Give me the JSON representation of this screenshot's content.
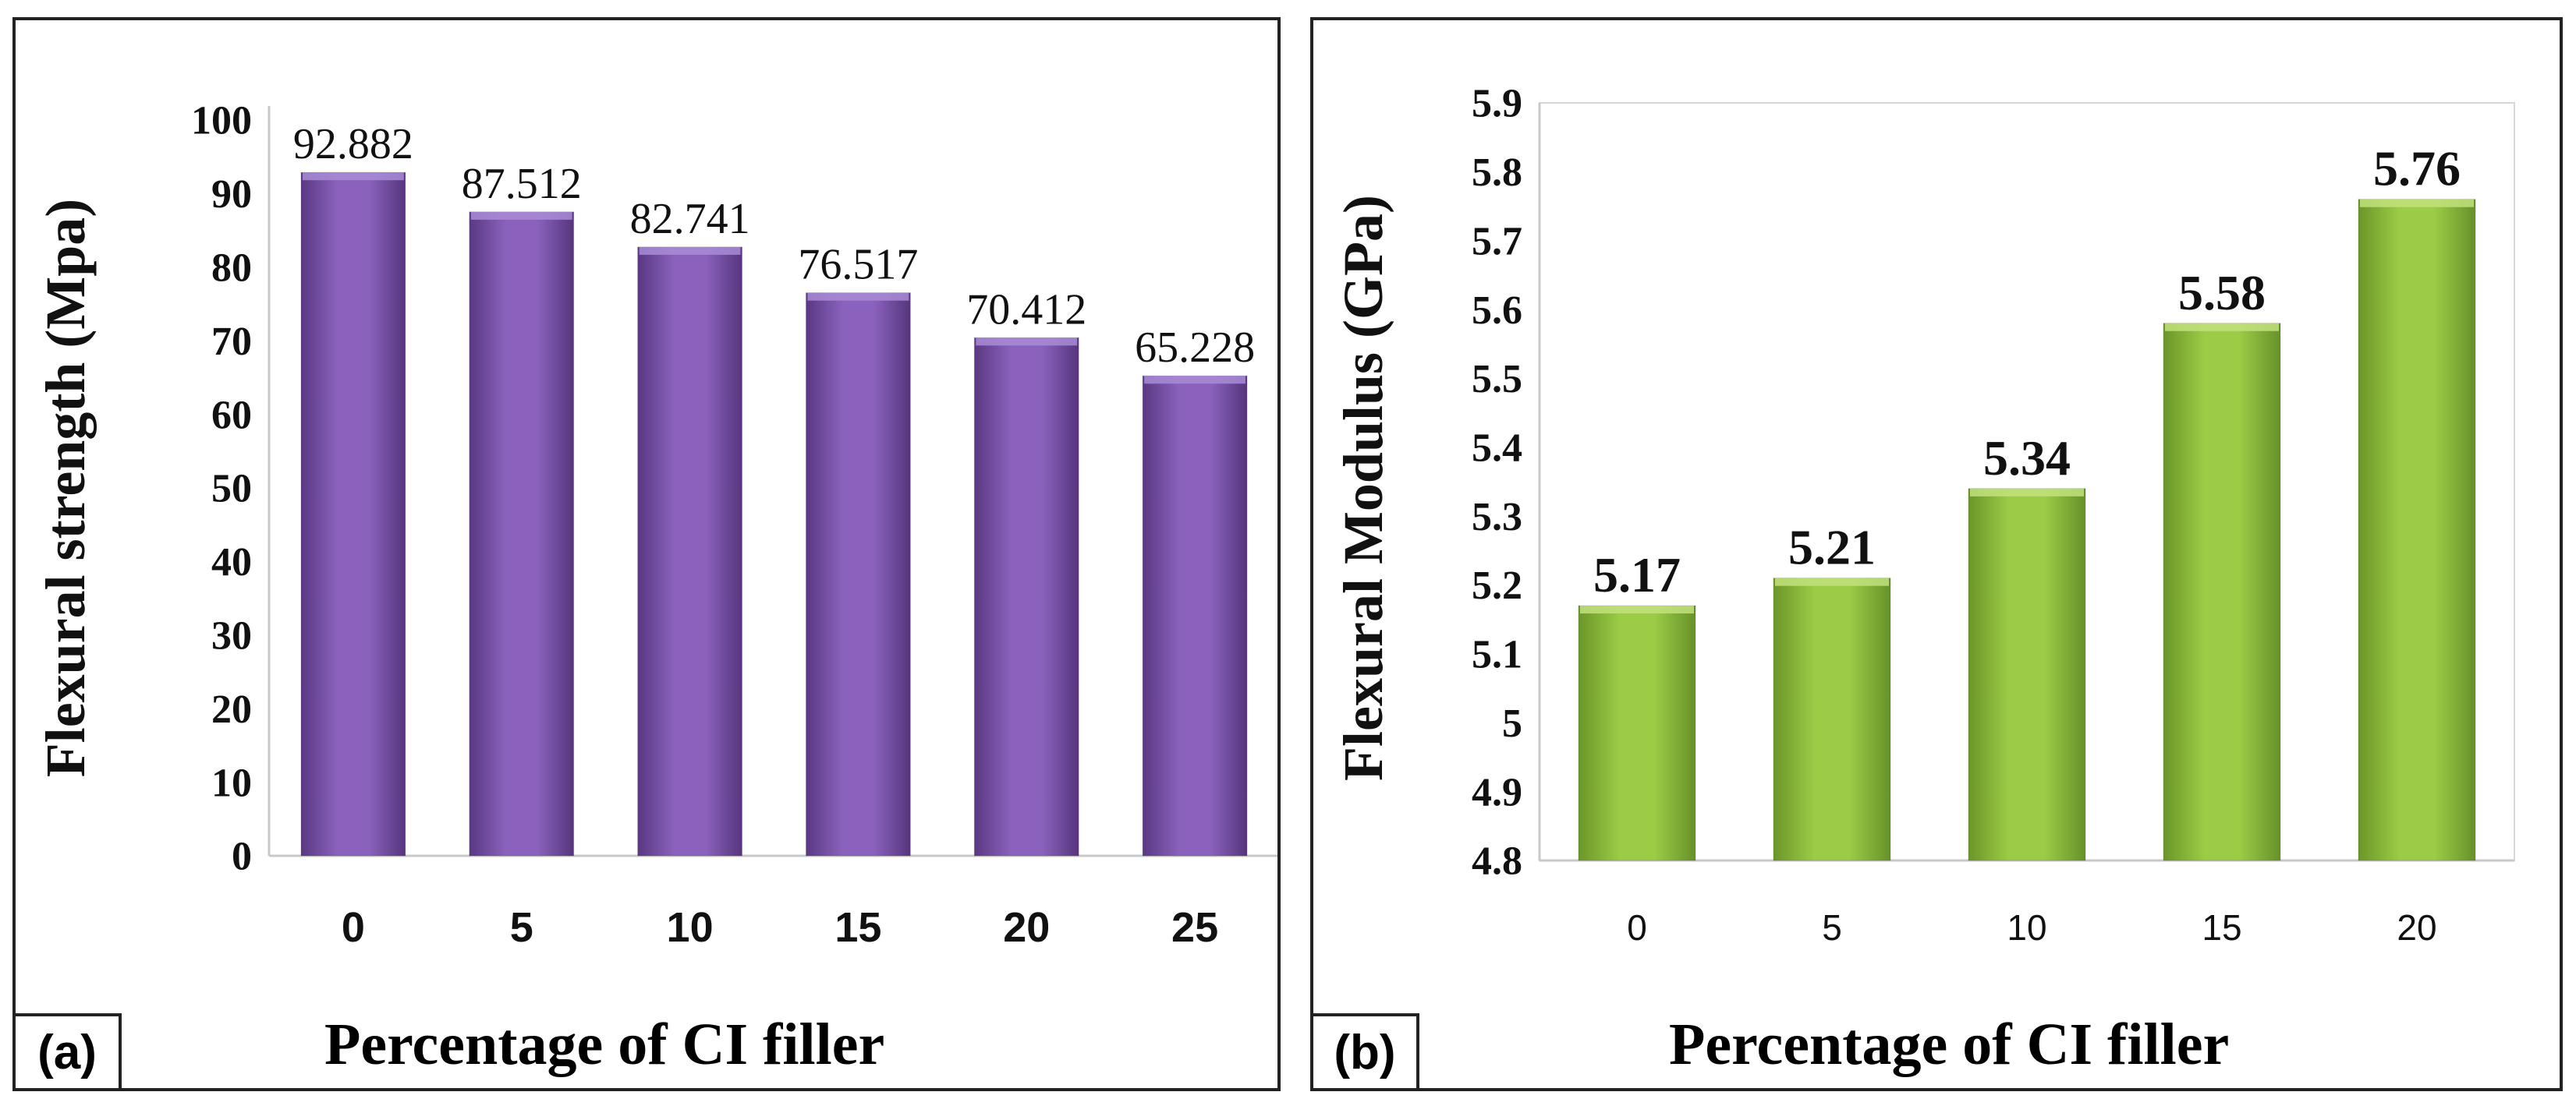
{
  "chart_data": [
    {
      "panel": "(a)",
      "type": "bar",
      "categories": [
        "0",
        "5",
        "10",
        "15",
        "20",
        "25"
      ],
      "values": [
        92.882,
        87.512,
        82.741,
        76.517,
        70.412,
        65.228
      ],
      "value_labels": [
        "92.882",
        "87.512",
        "82.741",
        "76.517",
        "70.412",
        "65.228"
      ],
      "title": "",
      "xlabel": "Percentage of CI filler",
      "ylabel": "Flexural strength (Mpa)",
      "ylim": [
        0,
        100
      ],
      "yticks": [
        "0",
        "10",
        "20",
        "30",
        "40",
        "50",
        "60",
        "70",
        "80",
        "90",
        "100"
      ],
      "grid": false,
      "color": "#7b52ab"
    },
    {
      "panel": "(b)",
      "type": "bar",
      "categories": [
        "0",
        "5",
        "10",
        "15",
        "20"
      ],
      "values": [
        5.17,
        5.21,
        5.34,
        5.58,
        5.76
      ],
      "value_labels": [
        "5.17",
        "5.21",
        "5.34",
        "5.58",
        "5.76"
      ],
      "title": "",
      "xlabel": "Percentage of CI filler",
      "ylabel": "Flexural Modulus (GPa)",
      "ylim": [
        4.8,
        5.9
      ],
      "yticks": [
        "4.8",
        "4.9",
        "5",
        "5.1",
        "5.2",
        "5.3",
        "5.4",
        "5.5",
        "5.6",
        "5.7",
        "5.8",
        "5.9"
      ],
      "grid": false,
      "color": "#8ab838"
    }
  ]
}
